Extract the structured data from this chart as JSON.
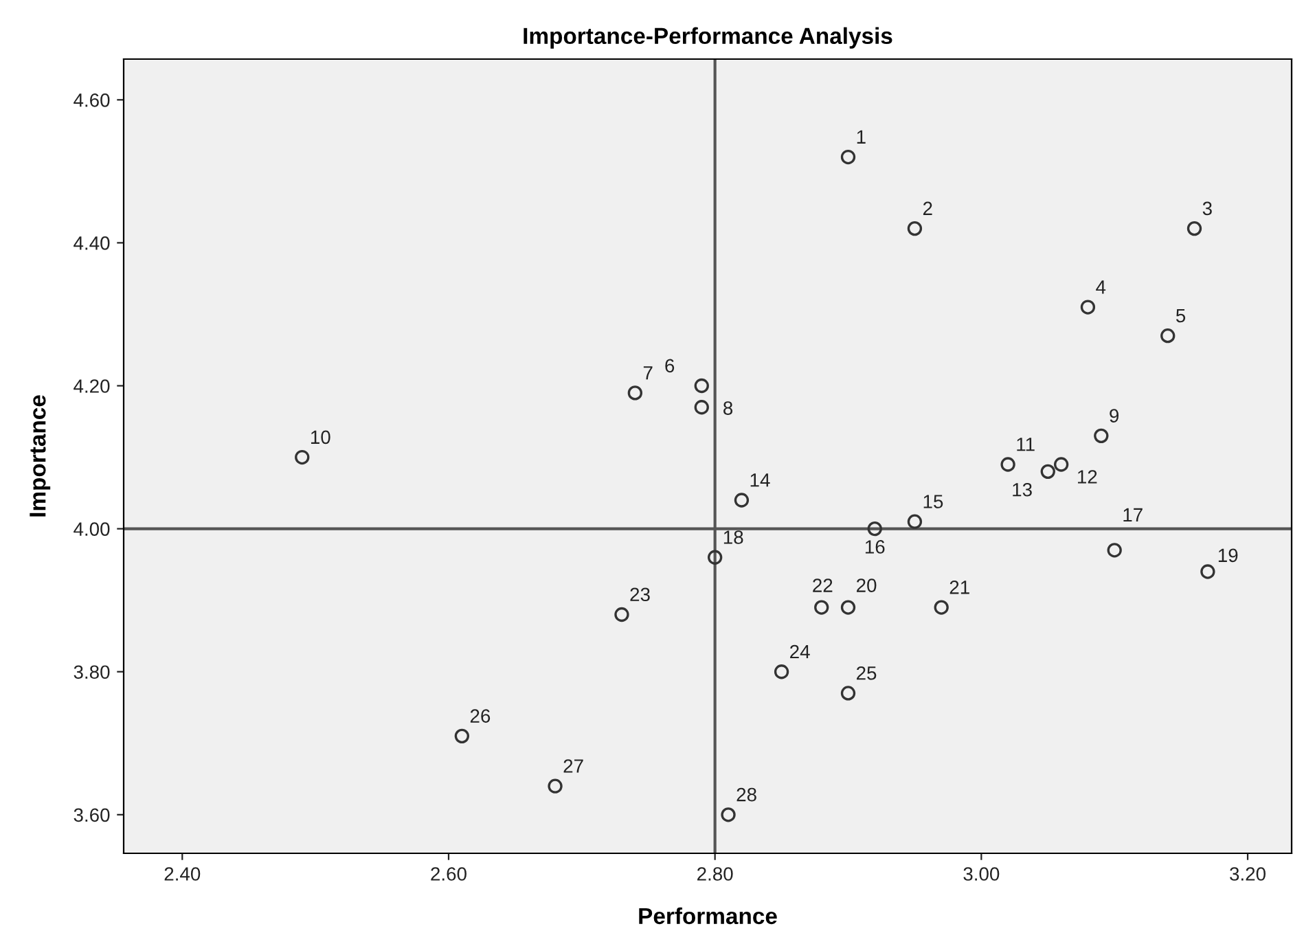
{
  "chart_data": {
    "type": "scatter",
    "title": "Importance-Performance Analysis",
    "xlabel": "Performance",
    "ylabel": "Importance",
    "x": [
      2.9,
      2.95,
      3.16,
      3.08,
      3.14,
      2.79,
      2.74,
      2.79,
      3.09,
      2.49,
      3.02,
      3.06,
      3.05,
      2.82,
      2.95,
      2.92,
      3.1,
      2.8,
      3.17,
      2.9,
      2.97,
      2.88,
      2.73,
      2.85,
      2.9,
      2.61,
      2.68,
      2.81
    ],
    "series": [
      {
        "color": "#333333",
        "values": [
          4.52,
          4.42,
          4.42,
          4.31,
          4.27,
          4.2,
          4.19,
          4.17,
          4.13,
          4.1,
          4.09,
          4.09,
          4.08,
          4.04,
          4.01,
          4.0,
          3.97,
          3.96,
          3.94,
          3.89,
          3.89,
          3.89,
          3.88,
          3.8,
          3.77,
          3.71,
          3.64,
          3.6
        ]
      }
    ],
    "marker": "circle",
    "grid": false,
    "legend": false,
    "xlim": [
      2.356,
      3.233
    ],
    "ylim": [
      3.546,
      4.657
    ],
    "xticks": [
      {
        "value": 2.4,
        "label": "2.40"
      },
      {
        "value": 2.6,
        "label": "2.60"
      },
      {
        "value": 2.8,
        "label": "2.80"
      },
      {
        "value": 3.0,
        "label": "3.00"
      },
      {
        "value": 3.2,
        "label": "3.20"
      }
    ],
    "yticks": [
      {
        "value": 3.6,
        "label": "3.60"
      },
      {
        "value": 3.8,
        "label": "3.80"
      },
      {
        "value": 4.0,
        "label": "4.00"
      },
      {
        "value": 4.2,
        "label": "4.20"
      },
      {
        "value": 4.4,
        "label": "4.40"
      },
      {
        "value": 4.6,
        "label": "4.60"
      }
    ],
    "ref_lines": [
      {
        "axis": "x",
        "value": 2.8,
        "color": "#555555"
      },
      {
        "axis": "y",
        "value": 4.0,
        "color": "#555555"
      }
    ],
    "annotations": [
      {
        "text": "1",
        "x": 2.9,
        "y": 4.52
      },
      {
        "text": "2",
        "x": 2.95,
        "y": 4.42
      },
      {
        "text": "3",
        "x": 3.16,
        "y": 4.42
      },
      {
        "text": "4",
        "x": 3.08,
        "y": 4.31
      },
      {
        "text": "5",
        "x": 3.14,
        "y": 4.27
      },
      {
        "text": "6",
        "x": 2.79,
        "y": 4.2
      },
      {
        "text": "7",
        "x": 2.74,
        "y": 4.19
      },
      {
        "text": "8",
        "x": 2.79,
        "y": 4.17
      },
      {
        "text": "9",
        "x": 3.09,
        "y": 4.13
      },
      {
        "text": "10",
        "x": 2.49,
        "y": 4.1
      },
      {
        "text": "11",
        "x": 3.02,
        "y": 4.09
      },
      {
        "text": "12",
        "x": 3.06,
        "y": 4.09
      },
      {
        "text": "13",
        "x": 3.05,
        "y": 4.08
      },
      {
        "text": "14",
        "x": 2.82,
        "y": 4.04
      },
      {
        "text": "15",
        "x": 2.95,
        "y": 4.01
      },
      {
        "text": "16",
        "x": 2.92,
        "y": 4.0
      },
      {
        "text": "17",
        "x": 3.1,
        "y": 3.97
      },
      {
        "text": "18",
        "x": 2.8,
        "y": 3.96
      },
      {
        "text": "19",
        "x": 3.17,
        "y": 3.94
      },
      {
        "text": "20",
        "x": 2.9,
        "y": 3.89
      },
      {
        "text": "21",
        "x": 2.97,
        "y": 3.89
      },
      {
        "text": "22",
        "x": 2.88,
        "y": 3.89
      },
      {
        "text": "23",
        "x": 2.73,
        "y": 3.88
      },
      {
        "text": "24",
        "x": 2.85,
        "y": 3.8
      },
      {
        "text": "25",
        "x": 2.9,
        "y": 3.77
      },
      {
        "text": "26",
        "x": 2.61,
        "y": 3.71
      },
      {
        "text": "27",
        "x": 2.68,
        "y": 3.64
      },
      {
        "text": "28",
        "x": 2.81,
        "y": 3.6
      }
    ]
  }
}
